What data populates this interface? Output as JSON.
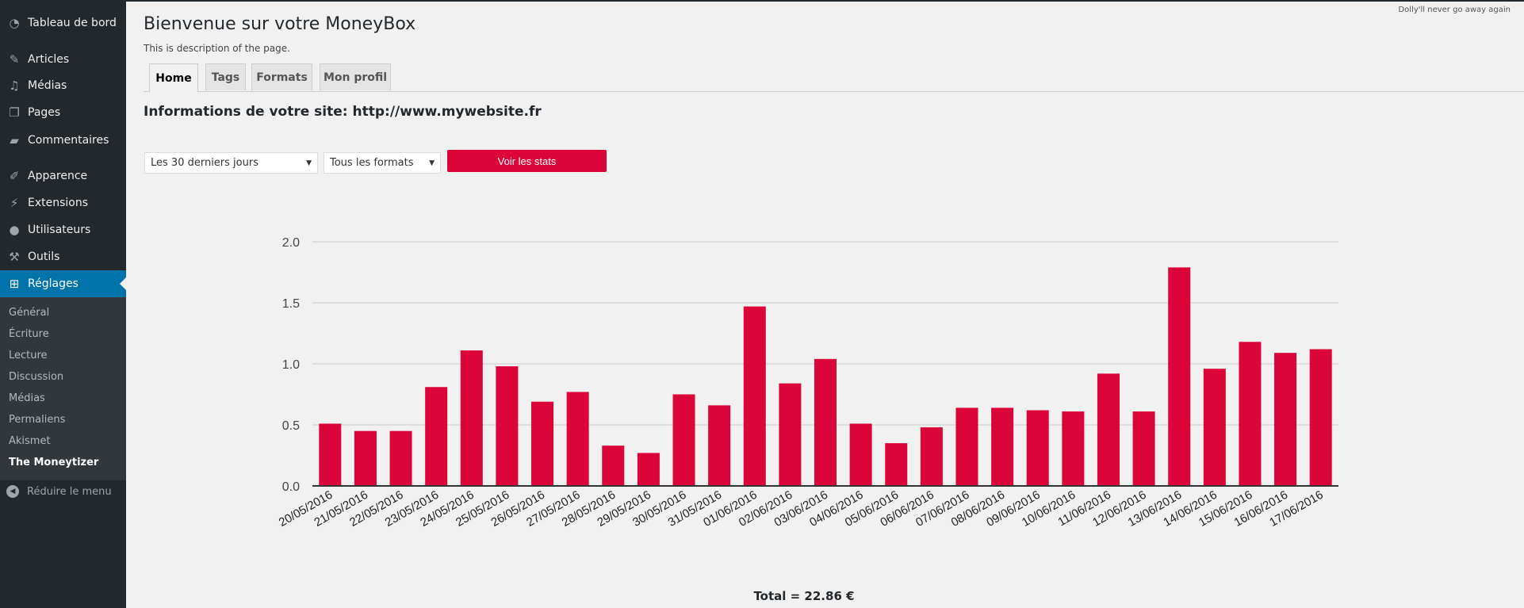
{
  "sidebar": {
    "items": [
      {
        "label": "Tableau de bord",
        "icon": "dashboard-icon",
        "glyph": "◔"
      },
      {
        "label": "Articles",
        "icon": "pin-icon",
        "glyph": "✎"
      },
      {
        "label": "Médias",
        "icon": "media-icon",
        "glyph": "♫"
      },
      {
        "label": "Pages",
        "icon": "pages-icon",
        "glyph": "❐"
      },
      {
        "label": "Commentaires",
        "icon": "comment-icon",
        "glyph": "▰"
      },
      {
        "label": "Apparence",
        "icon": "brush-icon",
        "glyph": "✐"
      },
      {
        "label": "Extensions",
        "icon": "plugin-icon",
        "glyph": "⚡"
      },
      {
        "label": "Utilisateurs",
        "icon": "user-icon",
        "glyph": "●"
      },
      {
        "label": "Outils",
        "icon": "wrench-icon",
        "glyph": "⚒"
      },
      {
        "label": "Réglages",
        "icon": "settings-icon",
        "glyph": "⊞"
      }
    ],
    "submenu": [
      "Général",
      "Écriture",
      "Lecture",
      "Discussion",
      "Médias",
      "Permaliens",
      "Akismet",
      "The Moneytizer"
    ],
    "collapse_label": "Réduire le menu"
  },
  "dolly": "Dolly'll never go away again",
  "header": {
    "title": "Bienvenue sur votre MoneyBox",
    "description": "This is description of the page."
  },
  "tabs": [
    "Home",
    "Tags",
    "Formats",
    "Mon profil"
  ],
  "site_info": "Informations de votre site: http://www.mywebsite.fr",
  "filters": {
    "period": "Les 30 derniers jours",
    "format": "Tous les formats",
    "submit_label": "Voir les stats"
  },
  "colors": {
    "accent": "#dc0539",
    "sidebar": "#23282d",
    "active": "#0073aa"
  },
  "chart_data": {
    "type": "bar",
    "categories": [
      "20/05/2016",
      "21/05/2016",
      "22/05/2016",
      "23/05/2016",
      "24/05/2016",
      "25/05/2016",
      "26/05/2016",
      "27/05/2016",
      "28/05/2016",
      "29/05/2016",
      "30/05/2016",
      "31/05/2016",
      "01/06/2016",
      "02/06/2016",
      "03/06/2016",
      "04/06/2016",
      "05/06/2016",
      "06/06/2016",
      "07/06/2016",
      "08/06/2016",
      "09/06/2016",
      "10/06/2016",
      "11/06/2016",
      "12/06/2016",
      "13/06/2016",
      "14/06/2016",
      "15/06/2016",
      "16/06/2016",
      "17/06/2016"
    ],
    "values": [
      0.51,
      0.45,
      0.45,
      0.81,
      1.11,
      0.98,
      0.69,
      0.77,
      0.33,
      0.27,
      0.75,
      0.66,
      1.47,
      0.84,
      1.04,
      0.51,
      0.35,
      0.48,
      0.64,
      0.64,
      0.62,
      0.61,
      0.92,
      0.61,
      1.79,
      0.96,
      1.18,
      1.09,
      1.12
    ],
    "ylim": [
      0,
      2
    ],
    "yticks": [
      "0.0",
      "0.5",
      "1.0",
      "1.5",
      "2.0"
    ],
    "grid": true,
    "color": "#dc0539"
  },
  "total": "Total = 22.86 €"
}
